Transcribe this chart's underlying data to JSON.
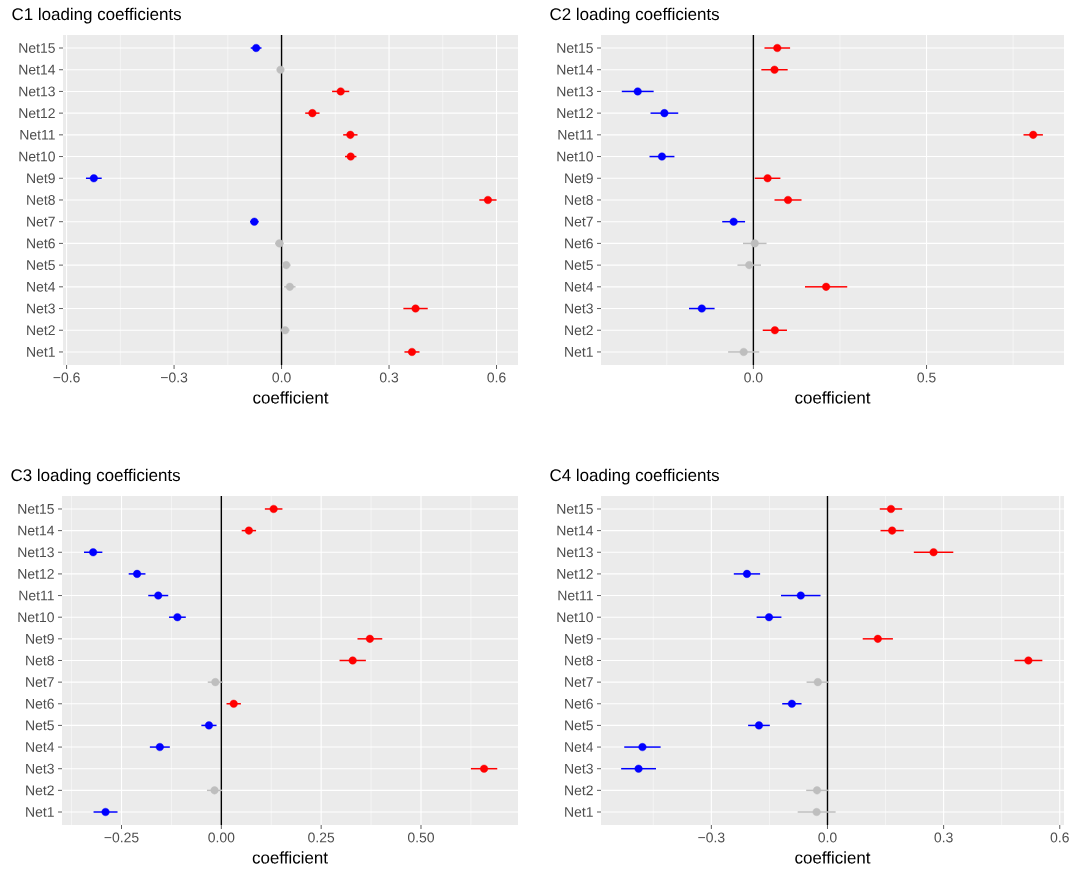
{
  "chart_data": [
    {
      "type": "scatter",
      "orientation": "horizontal",
      "title": "C1 loading coefficients",
      "xlabel": "coefficient",
      "marker": "circle",
      "grid": true,
      "categories": [
        "Net15",
        "Net14",
        "Net13",
        "Net12",
        "Net11",
        "Net10",
        "Net9",
        "Net8",
        "Net7",
        "Net6",
        "Net5",
        "Net4",
        "Net3",
        "Net2",
        "Net1"
      ],
      "values": [
        -0.071,
        -0.003,
        0.165,
        0.086,
        0.192,
        0.193,
        -0.524,
        0.576,
        -0.076,
        -0.006,
        0.013,
        0.023,
        0.374,
        0.01,
        0.364
      ],
      "errors": [
        0.015,
        0.01,
        0.024,
        0.02,
        0.02,
        0.016,
        0.022,
        0.024,
        0.012,
        0.012,
        0.012,
        0.016,
        0.034,
        0.012,
        0.021
      ],
      "colors": [
        "#0000ff",
        "#bebebe",
        "#ff0000",
        "#ff0000",
        "#ff0000",
        "#ff0000",
        "#0000ff",
        "#ff0000",
        "#0000ff",
        "#bebebe",
        "#bebebe",
        "#bebebe",
        "#ff0000",
        "#bebebe",
        "#ff0000"
      ],
      "xlim": [
        -0.61,
        0.66
      ],
      "xticks": [
        {
          "value": -0.6,
          "label": "−0.6"
        },
        {
          "value": -0.3,
          "label": "−0.3"
        },
        {
          "value": 0,
          "label": "0.0"
        },
        {
          "value": 0.3,
          "label": "0.3"
        },
        {
          "value": 0.6,
          "label": "0.6"
        }
      ],
      "ref_lines": [
        {
          "axis": "x",
          "value": 0,
          "color": "#000000"
        }
      ]
    },
    {
      "type": "scatter",
      "orientation": "horizontal",
      "title": "C2 loading coefficients",
      "xlabel": "coefficient",
      "marker": "circle",
      "grid": true,
      "categories": [
        "Net15",
        "Net14",
        "Net13",
        "Net12",
        "Net11",
        "Net10",
        "Net9",
        "Net8",
        "Net7",
        "Net6",
        "Net5",
        "Net4",
        "Net3",
        "Net2",
        "Net1"
      ],
      "values": [
        0.069,
        0.061,
        -0.334,
        -0.257,
        0.808,
        -0.264,
        0.041,
        0.1,
        -0.057,
        0.004,
        -0.012,
        0.21,
        -0.149,
        0.062,
        -0.028
      ],
      "errors": [
        0.037,
        0.038,
        0.046,
        0.04,
        0.028,
        0.036,
        0.037,
        0.039,
        0.033,
        0.034,
        0.034,
        0.061,
        0.037,
        0.035,
        0.045
      ],
      "colors": [
        "#ff0000",
        "#ff0000",
        "#0000ff",
        "#0000ff",
        "#ff0000",
        "#0000ff",
        "#ff0000",
        "#ff0000",
        "#0000ff",
        "#bebebe",
        "#bebebe",
        "#ff0000",
        "#0000ff",
        "#ff0000",
        "#bebebe"
      ],
      "xlim": [
        -0.44,
        0.897
      ],
      "xticks": [
        {
          "value": 0,
          "label": "0.0"
        },
        {
          "value": 0.5,
          "label": "0.5"
        }
      ],
      "ref_lines": [
        {
          "axis": "x",
          "value": 0,
          "color": "#000000"
        }
      ]
    },
    {
      "type": "scatter",
      "orientation": "horizontal",
      "title": "C3 loading coefficients",
      "xlabel": "coefficient",
      "marker": "circle",
      "grid": true,
      "categories": [
        "Net15",
        "Net14",
        "Net13",
        "Net12",
        "Net11",
        "Net10",
        "Net9",
        "Net8",
        "Net7",
        "Net6",
        "Net5",
        "Net4",
        "Net3",
        "Net2",
        "Net1"
      ],
      "values": [
        0.131,
        0.069,
        -0.321,
        -0.211,
        -0.158,
        -0.11,
        0.372,
        0.329,
        -0.015,
        0.031,
        -0.031,
        -0.154,
        0.658,
        -0.017,
        -0.29
      ],
      "errors": [
        0.022,
        0.018,
        0.023,
        0.021,
        0.025,
        0.021,
        0.031,
        0.033,
        0.019,
        0.018,
        0.019,
        0.025,
        0.033,
        0.019,
        0.03
      ],
      "colors": [
        "#ff0000",
        "#ff0000",
        "#0000ff",
        "#0000ff",
        "#0000ff",
        "#0000ff",
        "#ff0000",
        "#ff0000",
        "#bebebe",
        "#ff0000",
        "#0000ff",
        "#0000ff",
        "#ff0000",
        "#bebebe",
        "#0000ff"
      ],
      "xlim": [
        -0.399,
        0.743
      ],
      "xticks": [
        {
          "value": -0.25,
          "label": "−0.25"
        },
        {
          "value": 0,
          "label": "0.00"
        },
        {
          "value": 0.25,
          "label": "0.25"
        },
        {
          "value": 0.5,
          "label": "0.50"
        }
      ],
      "ref_lines": [
        {
          "axis": "x",
          "value": 0,
          "color": "#000000"
        }
      ]
    },
    {
      "type": "scatter",
      "orientation": "horizontal",
      "title": "C4 loading coefficients",
      "xlabel": "coefficient",
      "marker": "circle",
      "grid": true,
      "categories": [
        "Net15",
        "Net14",
        "Net13",
        "Net12",
        "Net11",
        "Net10",
        "Net9",
        "Net8",
        "Net7",
        "Net6",
        "Net5",
        "Net4",
        "Net3",
        "Net2",
        "Net1"
      ],
      "values": [
        0.164,
        0.167,
        0.274,
        -0.208,
        -0.069,
        -0.151,
        0.13,
        0.519,
        -0.025,
        -0.092,
        -0.177,
        -0.478,
        -0.488,
        -0.027,
        -0.028
      ],
      "errors": [
        0.029,
        0.03,
        0.051,
        0.034,
        0.051,
        0.032,
        0.039,
        0.036,
        0.029,
        0.025,
        0.028,
        0.047,
        0.045,
        0.028,
        0.049
      ],
      "colors": [
        "#ff0000",
        "#ff0000",
        "#ff0000",
        "#0000ff",
        "#0000ff",
        "#0000ff",
        "#ff0000",
        "#ff0000",
        "#bebebe",
        "#0000ff",
        "#0000ff",
        "#0000ff",
        "#0000ff",
        "#bebebe",
        "#bebebe"
      ],
      "xlim": [
        -0.585,
        0.611
      ],
      "xticks": [
        {
          "value": -0.3,
          "label": "−0.3"
        },
        {
          "value": 0,
          "label": "0.0"
        },
        {
          "value": 0.3,
          "label": "0.3"
        },
        {
          "value": 0.6,
          "label": "0.6"
        }
      ],
      "ref_lines": [
        {
          "axis": "x",
          "value": 0,
          "color": "#000000"
        }
      ]
    }
  ]
}
